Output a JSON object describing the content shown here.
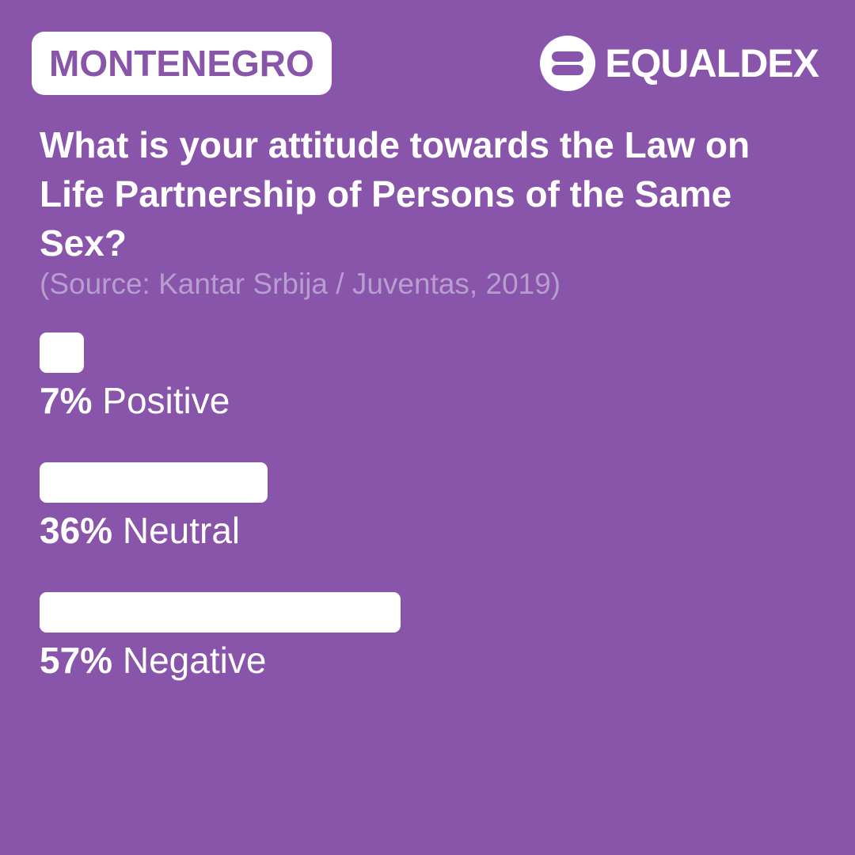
{
  "header": {
    "country": "MONTENEGRO",
    "brand_name": "EQUALDEX",
    "brand_icon": "equaldex-logo-icon"
  },
  "question": "What is your attitude towards the Law on Life Partnership of Persons of the Same Sex?",
  "source": "(Source: Kantar Srbija / Juventas, 2019)",
  "colors": {
    "background": "#8855aa",
    "bar": "#ffffff",
    "source_text": "#b89ed0"
  },
  "chart_data": {
    "type": "bar",
    "orientation": "horizontal",
    "categories": [
      "Positive",
      "Neutral",
      "Negative"
    ],
    "values": [
      7,
      36,
      57
    ],
    "value_labels": [
      "7%",
      "36%",
      "57%"
    ],
    "unit": "%",
    "xlim": [
      0,
      100
    ],
    "grid": false,
    "legend": false
  }
}
